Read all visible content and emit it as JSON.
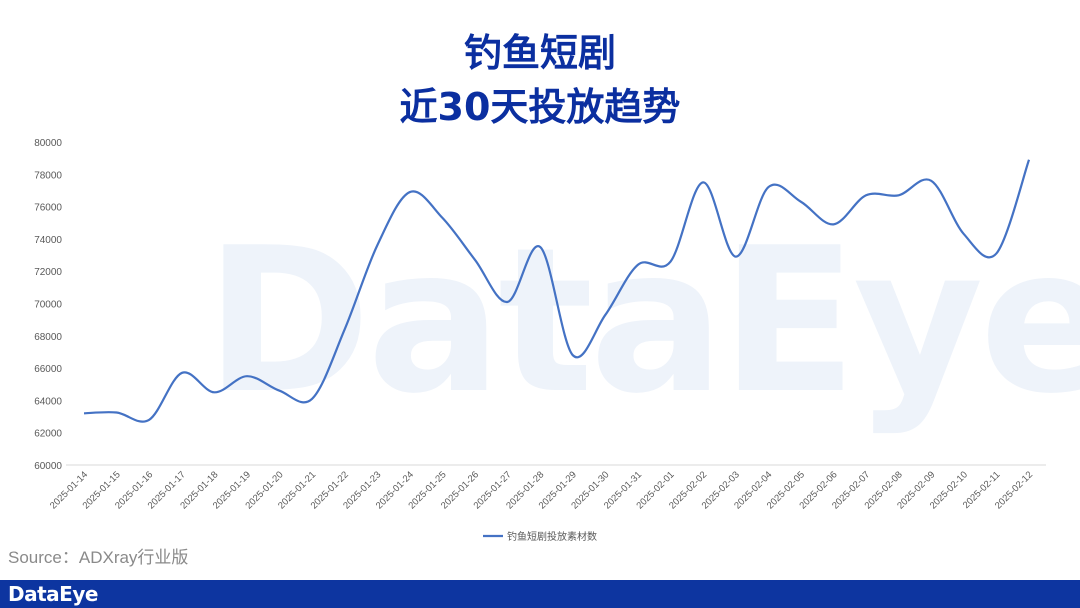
{
  "title_line1": "钓鱼短剧",
  "title_line2": "近30天投放趋势",
  "watermark": "DataEye",
  "source": "Source：ADXray行业版",
  "footer_logo": "DataEye",
  "colors": {
    "title": "#0b2fa0",
    "line": "#4472c4",
    "footer": "#0d35a0"
  },
  "chart_data": {
    "type": "line",
    "title": "",
    "xlabel": "",
    "ylabel": "",
    "ylim": [
      60000,
      80000
    ],
    "yticks": [
      60000,
      62000,
      64000,
      66000,
      68000,
      70000,
      72000,
      74000,
      76000,
      78000,
      80000
    ],
    "grid": false,
    "legend": "bottom",
    "categories": [
      "2025-01-14",
      "2025-01-15",
      "2025-01-16",
      "2025-01-17",
      "2025-01-18",
      "2025-01-19",
      "2025-01-20",
      "2025-01-21",
      "2025-01-22",
      "2025-01-23",
      "2025-01-24",
      "2025-01-25",
      "2025-01-26",
      "2025-01-27",
      "2025-01-28",
      "2025-01-29",
      "2025-01-30",
      "2025-01-31",
      "2025-02-01",
      "2025-02-02",
      "2025-02-03",
      "2025-02-04",
      "2025-02-05",
      "2025-02-06",
      "2025-02-07",
      "2025-02-08",
      "2025-02-09",
      "2025-02-10",
      "2025-02-11",
      "2025-02-12"
    ],
    "series": [
      {
        "name": "钓鱼短剧投放素材数",
        "values": [
          63200,
          63250,
          62800,
          65700,
          64500,
          65500,
          64600,
          64100,
          68400,
          73600,
          76900,
          75300,
          72700,
          70100,
          73500,
          66800,
          69300,
          72400,
          72600,
          77500,
          72900,
          77200,
          76300,
          74900,
          76700,
          76700,
          77600,
          74300,
          73100,
          78900
        ]
      }
    ]
  }
}
